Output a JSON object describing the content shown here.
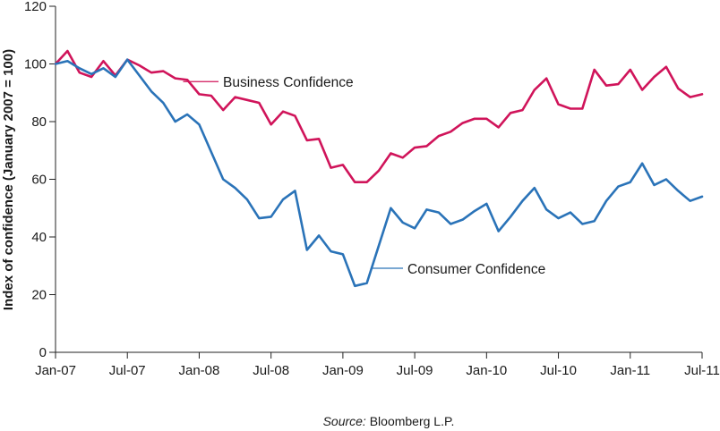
{
  "chart_data": {
    "type": "line",
    "title": "",
    "xlabel": "",
    "ylabel": "Index of confidence (January 2007 = 100)",
    "ylim": [
      0,
      120
    ],
    "yticks": [
      0,
      20,
      40,
      60,
      80,
      100,
      120
    ],
    "xlim": [
      "2007-01",
      "2011-07"
    ],
    "xtick_labels": [
      "Jan-07",
      "Jul-07",
      "Jan-08",
      "Jul-08",
      "Jan-09",
      "Jul-09",
      "Jan-10",
      "Jul-10",
      "Jan-11",
      "Jul-11"
    ],
    "grid": false,
    "x": [
      "2007-01",
      "2007-02",
      "2007-03",
      "2007-04",
      "2007-05",
      "2007-06",
      "2007-07",
      "2007-08",
      "2007-09",
      "2007-10",
      "2007-11",
      "2007-12",
      "2008-01",
      "2008-02",
      "2008-03",
      "2008-04",
      "2008-05",
      "2008-06",
      "2008-07",
      "2008-08",
      "2008-09",
      "2008-10",
      "2008-11",
      "2008-12",
      "2009-01",
      "2009-02",
      "2009-03",
      "2009-04",
      "2009-05",
      "2009-06",
      "2009-07",
      "2009-08",
      "2009-09",
      "2009-10",
      "2009-11",
      "2009-12",
      "2010-01",
      "2010-02",
      "2010-03",
      "2010-04",
      "2010-05",
      "2010-06",
      "2010-07",
      "2010-08",
      "2010-09",
      "2010-10",
      "2010-11",
      "2010-12",
      "2011-01",
      "2011-02",
      "2011-03",
      "2011-04",
      "2011-05",
      "2011-06",
      "2011-07"
    ],
    "series": [
      {
        "name": "Business Confidence",
        "color": "#d0145a",
        "values": [
          100,
          104.5,
          97,
          95.5,
          101,
          96,
          101.5,
          99.5,
          97,
          97.5,
          95,
          94.5,
          89.5,
          89,
          84,
          88.5,
          87.5,
          86.5,
          79,
          83.5,
          82,
          73.5,
          74,
          64,
          65,
          59,
          59,
          63,
          69,
          67.5,
          71,
          71.5,
          75,
          76.5,
          79.5,
          81,
          81,
          78,
          83,
          84,
          91,
          95,
          86,
          84.5,
          84.5,
          98,
          92.5,
          93,
          98,
          91,
          95.5,
          99,
          91.5,
          88.5,
          89.5
        ]
      },
      {
        "name": "Consumer Confidence",
        "color": "#2a73b8",
        "values": [
          100,
          101,
          98.5,
          96.5,
          98.5,
          95.5,
          101.5,
          96,
          90.5,
          86.5,
          80,
          82.5,
          79,
          69.5,
          60,
          57,
          53,
          46.5,
          47,
          53,
          56,
          35.5,
          40.5,
          35,
          34,
          23,
          24,
          37,
          50,
          45,
          43,
          49.5,
          48.5,
          44.5,
          46,
          49,
          51.5,
          42,
          47,
          52.5,
          57,
          49.5,
          46.5,
          48.5,
          44.5,
          45.5,
          52.5,
          57.5,
          59,
          65.5,
          58,
          60,
          56,
          52.5,
          54
        ]
      }
    ],
    "annotations": [
      {
        "text": "Business Confidence",
        "series": "Business Confidence"
      },
      {
        "text": "Consumer Confidence",
        "series": "Consumer Confidence"
      }
    ],
    "source_prefix": "Source:",
    "source_text": " Bloomberg L.P."
  }
}
